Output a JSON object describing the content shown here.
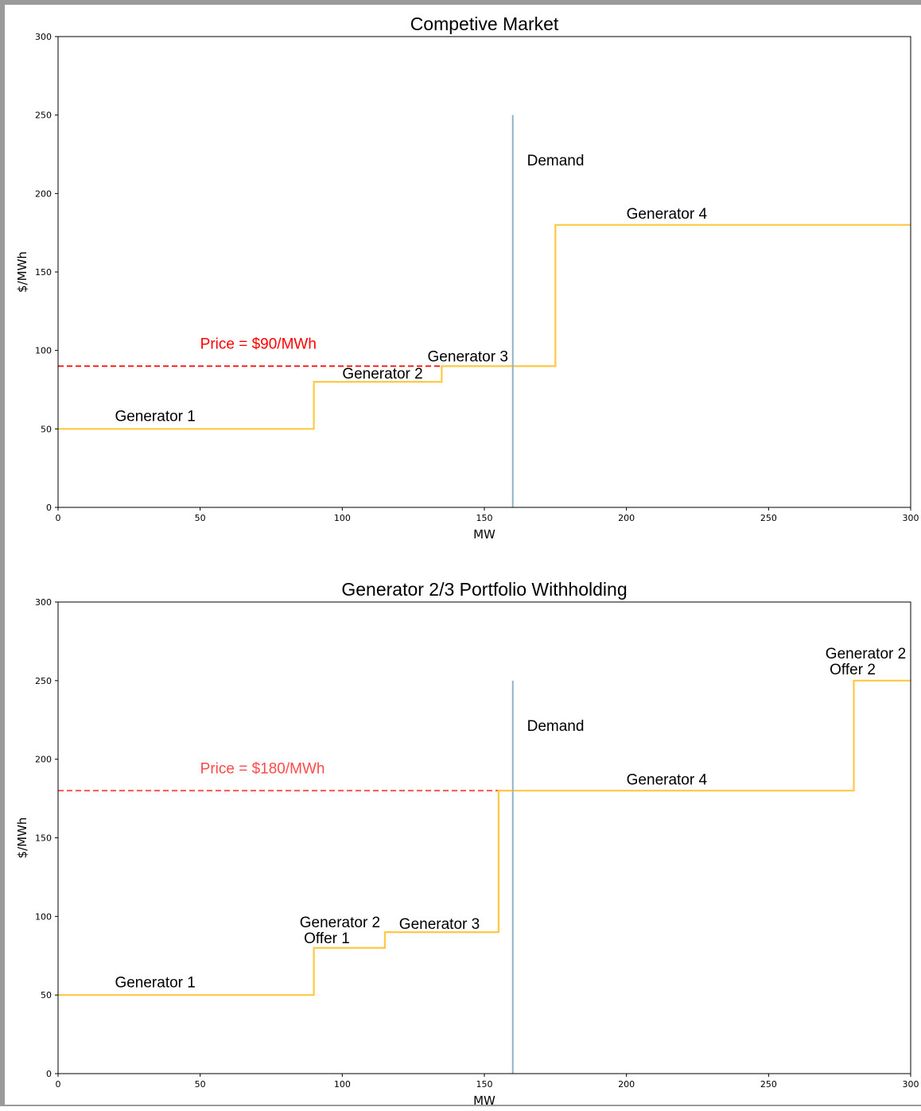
{
  "colors": {
    "supply": "#ffc845",
    "demand": "#8fb3c4",
    "price_chart1": "#ff0000",
    "price_chart2": "#ff4a4a"
  },
  "chart_data": [
    {
      "type": "line",
      "title": "Competive Market",
      "xlabel": "MW",
      "ylabel": "$/MWh",
      "xlim": [
        0,
        300
      ],
      "ylim": [
        0,
        300
      ],
      "xticks": [
        0,
        50,
        100,
        150,
        200,
        250,
        300
      ],
      "yticks": [
        0,
        50,
        100,
        150,
        200,
        250,
        300
      ],
      "grid": false,
      "supply_curve": {
        "x": [
          0,
          90,
          90,
          135,
          135,
          175,
          175,
          300
        ],
        "y": [
          50,
          50,
          80,
          80,
          90,
          90,
          180,
          180
        ]
      },
      "demand_line": {
        "x": 160,
        "y": [
          0,
          250
        ]
      },
      "price_line": {
        "y": 90,
        "x": [
          0,
          160
        ]
      },
      "annotations": [
        {
          "text": "Generator 1",
          "x": 20,
          "y": 55,
          "kind": "label"
        },
        {
          "text": "Generator 2",
          "x": 100,
          "y": 82,
          "kind": "label"
        },
        {
          "text": "Generator 3",
          "x": 130,
          "y": 93,
          "kind": "label"
        },
        {
          "text": "Generator 4",
          "x": 200,
          "y": 184,
          "kind": "label"
        },
        {
          "text": "Demand",
          "x": 165,
          "y": 218,
          "kind": "label"
        },
        {
          "text": "Price = $90/MWh",
          "x": 50,
          "y": 101,
          "kind": "price"
        }
      ]
    },
    {
      "type": "line",
      "title": "Generator 2/3 Portfolio Withholding",
      "xlabel": "MW",
      "ylabel": "$/MWh",
      "xlim": [
        0,
        300
      ],
      "ylim": [
        0,
        300
      ],
      "xticks": [
        0,
        50,
        100,
        150,
        200,
        250,
        300
      ],
      "yticks": [
        0,
        50,
        100,
        150,
        200,
        250,
        300
      ],
      "grid": false,
      "supply_curve": {
        "x": [
          0,
          90,
          90,
          115,
          115,
          155,
          155,
          280,
          280,
          300
        ],
        "y": [
          50,
          50,
          80,
          80,
          90,
          90,
          180,
          180,
          250,
          250
        ]
      },
      "demand_line": {
        "x": 160,
        "y": [
          0,
          250
        ]
      },
      "price_line": {
        "y": 180,
        "x": [
          0,
          160
        ]
      },
      "annotations": [
        {
          "text": "Generator 1",
          "x": 20,
          "y": 55,
          "kind": "label"
        },
        {
          "text": "Generator 2",
          "x": 85,
          "y": 93,
          "kind": "label"
        },
        {
          "text": "Offer 1",
          "x": 86.5,
          "y": 83,
          "kind": "label"
        },
        {
          "text": "Generator 3",
          "x": 120,
          "y": 92,
          "kind": "label"
        },
        {
          "text": "Generator 4",
          "x": 200,
          "y": 184,
          "kind": "label"
        },
        {
          "text": "Generator 2",
          "x": 270,
          "y": 264,
          "kind": "label"
        },
        {
          "text": "Offer 2",
          "x": 271.5,
          "y": 254,
          "kind": "label"
        },
        {
          "text": "Demand",
          "x": 165,
          "y": 218,
          "kind": "label"
        },
        {
          "text": "Price = $180/MWh",
          "x": 50,
          "y": 191,
          "kind": "price"
        }
      ]
    }
  ]
}
